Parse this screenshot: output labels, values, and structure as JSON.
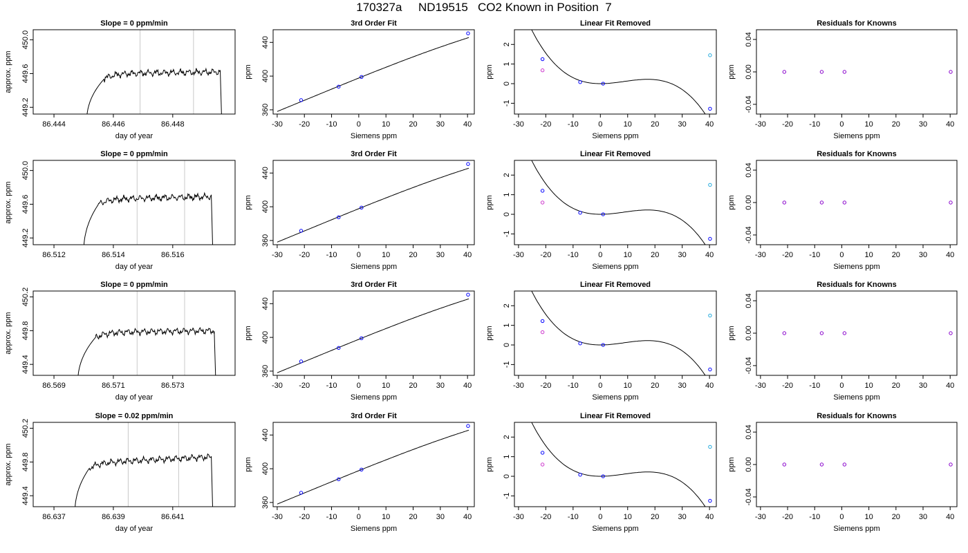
{
  "page_title": "170327a     ND19515   CO2 Known in Position  7",
  "colors": {
    "line": "#000000",
    "guide": "#c8c8c8",
    "point_blue": "#0000ff",
    "point_magenta": "#cc33cc",
    "point_cyan": "#22aadd",
    "point_gray": "#8888aa",
    "residual": "#8800cc"
  },
  "chart_data": [
    {
      "row": 1,
      "type": "line",
      "title": "Slope =  0  ppm/min",
      "xlabel": "day of year",
      "ylabel": "approx. ppm",
      "xlim": [
        86.4433,
        86.4501
      ],
      "ylim": [
        449.12,
        450.12
      ],
      "xticks": [
        "86.444",
        "86.446",
        "86.448"
      ],
      "xtick_values": [
        86.444,
        86.446,
        86.448
      ],
      "yticks": [
        "449.2",
        "449.6",
        "450.0"
      ],
      "ytick_values": [
        449.2,
        449.6,
        450.0
      ],
      "vlines": [
        86.4469,
        86.4487
      ],
      "trace": {
        "x0": 86.4451,
        "rise": 86.4457,
        "x1": 86.4496,
        "plateau": 449.6,
        "trend": 0.02
      }
    },
    {
      "row": 1,
      "type": "scatter",
      "title": "3rd Order Fit",
      "xlabel": "Siemens ppm",
      "ylabel": "ppm",
      "xlim": [
        -31.5,
        42.5
      ],
      "ylim": [
        355,
        455
      ],
      "xticks": [
        "-30",
        "-20",
        "-10",
        "0",
        "10",
        "20",
        "30",
        "40"
      ],
      "xtick_values": [
        -30,
        -20,
        -10,
        0,
        10,
        20,
        30,
        40
      ],
      "yticks": [
        "360",
        "400",
        "440"
      ],
      "ytick_values": [
        360,
        400,
        440
      ],
      "points": [
        {
          "x": -21.2,
          "y": 371.5
        },
        {
          "x": -7.4,
          "y": 387.5
        },
        {
          "x": 1.0,
          "y": 399.0
        },
        {
          "x": 40.2,
          "y": 450.7
        }
      ],
      "curve": {
        "a": 397.7,
        "b": 1.3,
        "c": -0.0016,
        "d": -3e-05,
        "from": -30,
        "to": 40.5
      }
    },
    {
      "row": 1,
      "type": "scatter",
      "title": "Linear Fit Removed",
      "xlabel": "Siemens ppm",
      "ylabel": "ppm",
      "xlim": [
        -31.5,
        42.5
      ],
      "ylim": [
        -1.55,
        2.75
      ],
      "xticks": [
        "-30",
        "-20",
        "-10",
        "0",
        "10",
        "20",
        "30",
        "40"
      ],
      "xtick_values": [
        -30,
        -20,
        -10,
        0,
        10,
        20,
        30,
        40
      ],
      "yticks": [
        "-1",
        "0",
        "1",
        "2"
      ],
      "ytick_values": [
        -1,
        0,
        1,
        2
      ],
      "points_blue": [
        {
          "x": -21.2,
          "y": 1.25
        },
        {
          "x": -7.4,
          "y": 0.08
        },
        {
          "x": 1.0,
          "y": 0.0
        },
        {
          "x": 40.2,
          "y": -1.28
        }
      ],
      "points_magenta": [
        {
          "x": -21.2,
          "y": 0.68
        }
      ],
      "points_cyan": [
        {
          "x": 40.2,
          "y": 1.45
        }
      ],
      "curve": {
        "c": 0.0022,
        "d": -8.45e-05,
        "from": -30,
        "to": 40.5
      }
    },
    {
      "row": 1,
      "type": "scatter",
      "title": "Residuals for Knowns",
      "xlabel": "Siemens ppm",
      "ylabel": "ppm",
      "xlim": [
        -31.5,
        42.5
      ],
      "ylim": [
        -0.052,
        0.052
      ],
      "xticks": [
        "-30",
        "-20",
        "-10",
        "0",
        "10",
        "20",
        "30",
        "40"
      ],
      "xtick_values": [
        -30,
        -20,
        -10,
        0,
        10,
        20,
        30,
        40
      ],
      "yticks": [
        "-0.04",
        "0.00",
        "0.04"
      ],
      "ytick_values": [
        -0.04,
        0.0,
        0.04
      ],
      "points": [
        {
          "x": -21.2,
          "y": 0
        },
        {
          "x": -7.4,
          "y": 0
        },
        {
          "x": 1.0,
          "y": 0
        },
        {
          "x": 40.2,
          "y": 0
        }
      ]
    },
    {
      "row": 2,
      "type": "line",
      "title": "Slope =  0  ppm/min",
      "xlabel": "day of year",
      "ylabel": "approx. ppm",
      "xlim": [
        86.5113,
        86.5181
      ],
      "ylim": [
        449.12,
        450.12
      ],
      "xticks": [
        "86.512",
        "86.514",
        "86.516"
      ],
      "xtick_values": [
        86.512,
        86.514,
        86.516
      ],
      "yticks": [
        "449.2",
        "449.6",
        "450.0"
      ],
      "ytick_values": [
        449.2,
        449.6,
        450.0
      ],
      "vlines": [
        86.5148,
        86.5164
      ],
      "trace": {
        "x0": 86.513,
        "rise": 86.5135,
        "x1": 86.5173,
        "plateau": 449.66,
        "trend": 0.03
      }
    },
    {
      "row": 2,
      "type": "scatter",
      "title": "3rd Order Fit",
      "xlabel": "Siemens ppm",
      "ylabel": "ppm",
      "xlim": [
        -31.5,
        42.5
      ],
      "ylim": [
        355,
        455
      ],
      "xticks": [
        "-30",
        "-20",
        "-10",
        "0",
        "10",
        "20",
        "30",
        "40"
      ],
      "xtick_values": [
        -30,
        -20,
        -10,
        0,
        10,
        20,
        30,
        40
      ],
      "yticks": [
        "360",
        "400",
        "440"
      ],
      "ytick_values": [
        360,
        400,
        440
      ],
      "points": [
        {
          "x": -21.2,
          "y": 371.5
        },
        {
          "x": -7.4,
          "y": 387.5
        },
        {
          "x": 1.0,
          "y": 399.0
        },
        {
          "x": 40.2,
          "y": 450.7
        }
      ],
      "curve": {
        "a": 397.7,
        "b": 1.3,
        "c": -0.0016,
        "d": -3e-05,
        "from": -30,
        "to": 40.5
      }
    },
    {
      "row": 2,
      "type": "scatter",
      "title": "Linear Fit Removed",
      "xlabel": "Siemens ppm",
      "ylabel": "ppm",
      "xlim": [
        -31.5,
        42.5
      ],
      "ylim": [
        -1.55,
        2.75
      ],
      "xticks": [
        "-30",
        "-20",
        "-10",
        "0",
        "10",
        "20",
        "30",
        "40"
      ],
      "xtick_values": [
        -30,
        -20,
        -10,
        0,
        10,
        20,
        30,
        40
      ],
      "yticks": [
        "-1",
        "0",
        "1",
        "2"
      ],
      "ytick_values": [
        -1,
        0,
        1,
        2
      ],
      "points_blue": [
        {
          "x": -21.2,
          "y": 1.2
        },
        {
          "x": -7.4,
          "y": 0.08
        },
        {
          "x": 1.0,
          "y": 0.0
        },
        {
          "x": 40.2,
          "y": -1.25
        }
      ],
      "points_magenta": [
        {
          "x": -21.2,
          "y": 0.6
        }
      ],
      "points_cyan": [
        {
          "x": 40.2,
          "y": 1.5
        }
      ],
      "curve": {
        "c": 0.0022,
        "d": -8.45e-05,
        "from": -30,
        "to": 40.5
      }
    },
    {
      "row": 2,
      "type": "scatter",
      "title": "Residuals for Knowns",
      "xlabel": "Siemens ppm",
      "ylabel": "ppm",
      "xlim": [
        -31.5,
        42.5
      ],
      "ylim": [
        -0.052,
        0.052
      ],
      "xticks": [
        "-30",
        "-20",
        "-10",
        "0",
        "10",
        "20",
        "30",
        "40"
      ],
      "xtick_values": [
        -30,
        -20,
        -10,
        0,
        10,
        20,
        30,
        40
      ],
      "yticks": [
        "-0.04",
        "0.00",
        "0.04"
      ],
      "ytick_values": [
        -0.04,
        0.0,
        0.04
      ],
      "points": [
        {
          "x": -21.2,
          "y": 0
        },
        {
          "x": -7.4,
          "y": 0
        },
        {
          "x": 1.0,
          "y": 0
        },
        {
          "x": 40.2,
          "y": 0
        }
      ]
    },
    {
      "row": 3,
      "type": "line",
      "title": "Slope =  0  ppm/min",
      "xlabel": "day of year",
      "ylabel": "approx. ppm",
      "xlim": [
        86.5683,
        86.5751
      ],
      "ylim": [
        449.27,
        450.27
      ],
      "xticks": [
        "86.569",
        "86.571",
        "86.573"
      ],
      "xtick_values": [
        86.569,
        86.571,
        86.573
      ],
      "yticks": [
        "449.4",
        "449.8",
        "450.2"
      ],
      "ytick_values": [
        449.4,
        449.8,
        450.2
      ],
      "vlines": [
        86.5718,
        86.5734
      ],
      "trace": {
        "x0": 86.5698,
        "rise": 86.5704,
        "x1": 86.5744,
        "plateau": 449.78,
        "trend": 0.02
      }
    },
    {
      "row": 3,
      "type": "scatter",
      "title": "3rd Order Fit",
      "xlabel": "Siemens ppm",
      "ylabel": "ppm",
      "xlim": [
        -31.5,
        42.5
      ],
      "ylim": [
        355,
        455
      ],
      "xticks": [
        "-30",
        "-20",
        "-10",
        "0",
        "10",
        "20",
        "30",
        "40"
      ],
      "xtick_values": [
        -30,
        -20,
        -10,
        0,
        10,
        20,
        30,
        40
      ],
      "yticks": [
        "360",
        "400",
        "440"
      ],
      "ytick_values": [
        360,
        400,
        440
      ],
      "points": [
        {
          "x": -21.2,
          "y": 371.5
        },
        {
          "x": -7.4,
          "y": 387.5
        },
        {
          "x": 1.0,
          "y": 399.0
        },
        {
          "x": 40.2,
          "y": 450.7
        }
      ],
      "curve": {
        "a": 397.7,
        "b": 1.3,
        "c": -0.0016,
        "d": -3e-05,
        "from": -30,
        "to": 40.5
      }
    },
    {
      "row": 3,
      "type": "scatter",
      "title": "Linear Fit Removed",
      "xlabel": "Siemens ppm",
      "ylabel": "ppm",
      "xlim": [
        -31.5,
        42.5
      ],
      "ylim": [
        -1.55,
        2.75
      ],
      "xticks": [
        "-30",
        "-20",
        "-10",
        "0",
        "10",
        "20",
        "30",
        "40"
      ],
      "xtick_values": [
        -30,
        -20,
        -10,
        0,
        10,
        20,
        30,
        40
      ],
      "yticks": [
        "-1",
        "0",
        "1",
        "2"
      ],
      "ytick_values": [
        -1,
        0,
        1,
        2
      ],
      "points_blue": [
        {
          "x": -21.2,
          "y": 1.22
        },
        {
          "x": -7.4,
          "y": 0.08
        },
        {
          "x": 1.0,
          "y": 0.0
        },
        {
          "x": 40.2,
          "y": -1.25
        }
      ],
      "points_magenta": [
        {
          "x": -21.2,
          "y": 0.65
        }
      ],
      "points_cyan": [
        {
          "x": 40.2,
          "y": 1.5
        }
      ],
      "curve": {
        "c": 0.0022,
        "d": -8.45e-05,
        "from": -30,
        "to": 40.5
      }
    },
    {
      "row": 3,
      "type": "scatter",
      "title": "Residuals for Knowns",
      "xlabel": "Siemens ppm",
      "ylabel": "ppm",
      "xlim": [
        -31.5,
        42.5
      ],
      "ylim": [
        -0.052,
        0.052
      ],
      "xticks": [
        "-30",
        "-20",
        "-10",
        "0",
        "10",
        "20",
        "30",
        "40"
      ],
      "xtick_values": [
        -30,
        -20,
        -10,
        0,
        10,
        20,
        30,
        40
      ],
      "yticks": [
        "-0.04",
        "0.00",
        "0.04"
      ],
      "ytick_values": [
        -0.04,
        0.0,
        0.04
      ],
      "points": [
        {
          "x": -21.2,
          "y": 0
        },
        {
          "x": -7.4,
          "y": 0
        },
        {
          "x": 1.0,
          "y": 0
        },
        {
          "x": 40.2,
          "y": 0
        }
      ]
    },
    {
      "row": 4,
      "type": "line",
      "title": "Slope =  0.02  ppm/min",
      "xlabel": "day of year",
      "ylabel": "approx. ppm",
      "xlim": [
        86.6363,
        86.6431
      ],
      "ylim": [
        449.27,
        450.27
      ],
      "xticks": [
        "86.637",
        "86.639",
        "86.641"
      ],
      "xtick_values": [
        86.637,
        86.639,
        86.641
      ],
      "yticks": [
        "449.4",
        "449.8",
        "450.2"
      ],
      "ytick_values": [
        449.4,
        449.8,
        450.2
      ],
      "vlines": [
        86.6395,
        86.6412
      ],
      "trace": {
        "x0": 86.6377,
        "rise": 86.6382,
        "x1": 86.6423,
        "plateau": 449.79,
        "trend": 0.07
      }
    },
    {
      "row": 4,
      "type": "scatter",
      "title": "3rd Order Fit",
      "xlabel": "Siemens ppm",
      "ylabel": "ppm",
      "xlim": [
        -31.5,
        42.5
      ],
      "ylim": [
        355,
        455
      ],
      "xticks": [
        "-30",
        "-20",
        "-10",
        "0",
        "10",
        "20",
        "30",
        "40"
      ],
      "xtick_values": [
        -30,
        -20,
        -10,
        0,
        10,
        20,
        30,
        40
      ],
      "yticks": [
        "360",
        "400",
        "440"
      ],
      "ytick_values": [
        360,
        400,
        440
      ],
      "points": [
        {
          "x": -21.2,
          "y": 371.5
        },
        {
          "x": -7.4,
          "y": 387.5
        },
        {
          "x": 1.0,
          "y": 399.0
        },
        {
          "x": 40.2,
          "y": 450.7
        }
      ],
      "curve": {
        "a": 397.7,
        "b": 1.3,
        "c": -0.0016,
        "d": -3e-05,
        "from": -30,
        "to": 40.5
      }
    },
    {
      "row": 4,
      "type": "scatter",
      "title": "Linear Fit Removed",
      "xlabel": "Siemens ppm",
      "ylabel": "ppm",
      "xlim": [
        -31.5,
        42.5
      ],
      "ylim": [
        -1.55,
        2.75
      ],
      "xticks": [
        "-30",
        "-20",
        "-10",
        "0",
        "10",
        "20",
        "30",
        "40"
      ],
      "xtick_values": [
        -30,
        -20,
        -10,
        0,
        10,
        20,
        30,
        40
      ],
      "yticks": [
        "-1",
        "0",
        "1",
        "2"
      ],
      "ytick_values": [
        -1,
        0,
        1,
        2
      ],
      "points_blue": [
        {
          "x": -21.2,
          "y": 1.2
        },
        {
          "x": -7.4,
          "y": 0.08
        },
        {
          "x": 1.0,
          "y": 0.0
        },
        {
          "x": 40.2,
          "y": -1.25
        }
      ],
      "points_magenta": [
        {
          "x": -21.2,
          "y": 0.6
        }
      ],
      "points_cyan": [
        {
          "x": 40.2,
          "y": 1.5
        }
      ],
      "curve": {
        "c": 0.0022,
        "d": -8.45e-05,
        "from": -30,
        "to": 40.5
      }
    },
    {
      "row": 4,
      "type": "scatter",
      "title": "Residuals for Knowns",
      "xlabel": "Siemens ppm",
      "ylabel": "ppm",
      "xlim": [
        -31.5,
        42.5
      ],
      "ylim": [
        -0.052,
        0.052
      ],
      "xticks": [
        "-30",
        "-20",
        "-10",
        "0",
        "10",
        "20",
        "30",
        "40"
      ],
      "xtick_values": [
        -30,
        -20,
        -10,
        0,
        10,
        20,
        30,
        40
      ],
      "yticks": [
        "-0.04",
        "0.00",
        "0.04"
      ],
      "ytick_values": [
        -0.04,
        0.0,
        0.04
      ],
      "points": [
        {
          "x": -21.2,
          "y": 0
        },
        {
          "x": -7.4,
          "y": 0
        },
        {
          "x": 1.0,
          "y": 0
        },
        {
          "x": 40.2,
          "y": 0
        }
      ]
    }
  ]
}
